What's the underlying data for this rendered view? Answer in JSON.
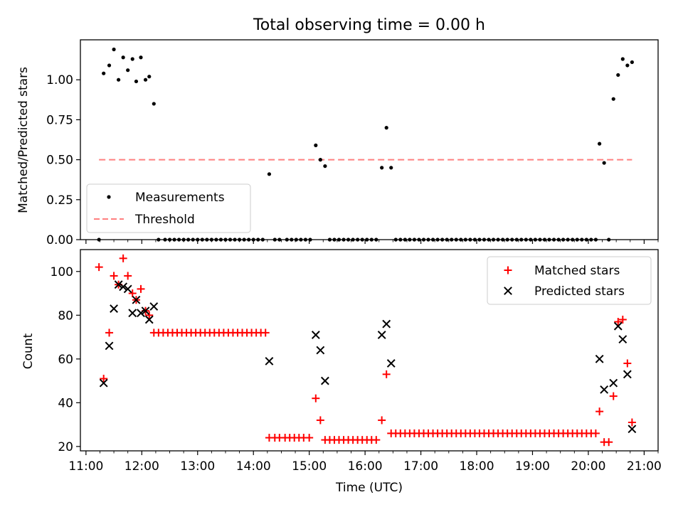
{
  "chart_data": [
    {
      "type": "scatter",
      "title": "Total observing time = 0.00 h",
      "xlabel": "",
      "ylabel": "Matched/Predicted stars",
      "xlim": [
        "10:54",
        "21:15"
      ],
      "ylim": [
        0.0,
        1.25
      ],
      "yticks": [
        0.0,
        0.25,
        0.5,
        0.75,
        1.0
      ],
      "ytick_labels": [
        "0.00",
        "0.25",
        "0.50",
        "0.75",
        "1.00"
      ],
      "grid": false,
      "legend_position": "lower-left",
      "series": [
        {
          "name": "Measurements",
          "marker": "dot",
          "color": "#000000",
          "points": [
            [
              "11:14",
              0.0
            ],
            [
              "11:19",
              1.04
            ],
            [
              "11:25",
              1.09
            ],
            [
              "11:30",
              1.19
            ],
            [
              "11:35",
              1.0
            ],
            [
              "11:40",
              1.14
            ],
            [
              "11:45",
              1.06
            ],
            [
              "11:50",
              1.13
            ],
            [
              "11:54",
              0.99
            ],
            [
              "11:59",
              1.14
            ],
            [
              "12:04",
              1.0
            ],
            [
              "12:08",
              1.02
            ],
            [
              "12:13",
              0.85
            ],
            [
              "12:18",
              0.0
            ],
            [
              "12:25",
              0.0
            ],
            [
              "12:30",
              0.0
            ],
            [
              "12:35",
              0.0
            ],
            [
              "12:40",
              0.0
            ],
            [
              "12:45",
              0.0
            ],
            [
              "12:50",
              0.0
            ],
            [
              "12:55",
              0.0
            ],
            [
              "13:00",
              0.0
            ],
            [
              "13:05",
              0.0
            ],
            [
              "13:10",
              0.0
            ],
            [
              "13:15",
              0.0
            ],
            [
              "13:20",
              0.0
            ],
            [
              "13:25",
              0.0
            ],
            [
              "13:30",
              0.0
            ],
            [
              "13:35",
              0.0
            ],
            [
              "13:40",
              0.0
            ],
            [
              "13:45",
              0.0
            ],
            [
              "13:50",
              0.0
            ],
            [
              "13:55",
              0.0
            ],
            [
              "14:00",
              0.0
            ],
            [
              "14:05",
              0.0
            ],
            [
              "14:10",
              0.0
            ],
            [
              "14:17",
              0.41
            ],
            [
              "14:23",
              0.0
            ],
            [
              "14:28",
              0.0
            ],
            [
              "14:36",
              0.0
            ],
            [
              "14:41",
              0.0
            ],
            [
              "14:46",
              0.0
            ],
            [
              "14:51",
              0.0
            ],
            [
              "14:56",
              0.0
            ],
            [
              "15:01",
              0.0
            ],
            [
              "15:07",
              0.59
            ],
            [
              "15:12",
              0.5
            ],
            [
              "15:17",
              0.46
            ],
            [
              "15:22",
              0.0
            ],
            [
              "15:27",
              0.0
            ],
            [
              "15:32",
              0.0
            ],
            [
              "15:37",
              0.0
            ],
            [
              "15:42",
              0.0
            ],
            [
              "15:47",
              0.0
            ],
            [
              "15:52",
              0.0
            ],
            [
              "15:57",
              0.0
            ],
            [
              "16:02",
              0.0
            ],
            [
              "16:07",
              0.0
            ],
            [
              "16:12",
              0.0
            ],
            [
              "16:18",
              0.45
            ],
            [
              "16:23",
              0.7
            ],
            [
              "16:28",
              0.45
            ],
            [
              "16:33",
              0.0
            ],
            [
              "16:38",
              0.0
            ],
            [
              "16:43",
              0.0
            ],
            [
              "16:48",
              0.0
            ],
            [
              "16:53",
              0.0
            ],
            [
              "16:58",
              0.0
            ],
            [
              "17:03",
              0.0
            ],
            [
              "17:08",
              0.0
            ],
            [
              "17:13",
              0.0
            ],
            [
              "17:18",
              0.0
            ],
            [
              "17:23",
              0.0
            ],
            [
              "17:28",
              0.0
            ],
            [
              "17:33",
              0.0
            ],
            [
              "17:38",
              0.0
            ],
            [
              "17:43",
              0.0
            ],
            [
              "17:48",
              0.0
            ],
            [
              "17:53",
              0.0
            ],
            [
              "17:58",
              0.0
            ],
            [
              "18:03",
              0.0
            ],
            [
              "18:08",
              0.0
            ],
            [
              "18:13",
              0.0
            ],
            [
              "18:18",
              0.0
            ],
            [
              "18:23",
              0.0
            ],
            [
              "18:28",
              0.0
            ],
            [
              "18:33",
              0.0
            ],
            [
              "18:38",
              0.0
            ],
            [
              "18:43",
              0.0
            ],
            [
              "18:48",
              0.0
            ],
            [
              "18:53",
              0.0
            ],
            [
              "18:58",
              0.0
            ],
            [
              "19:03",
              0.0
            ],
            [
              "19:08",
              0.0
            ],
            [
              "19:13",
              0.0
            ],
            [
              "19:18",
              0.0
            ],
            [
              "19:23",
              0.0
            ],
            [
              "19:28",
              0.0
            ],
            [
              "19:33",
              0.0
            ],
            [
              "19:38",
              0.0
            ],
            [
              "19:43",
              0.0
            ],
            [
              "19:48",
              0.0
            ],
            [
              "19:53",
              0.0
            ],
            [
              "19:58",
              0.0
            ],
            [
              "20:03",
              0.0
            ],
            [
              "20:08",
              0.0
            ],
            [
              "20:12",
              0.6
            ],
            [
              "20:17",
              0.48
            ],
            [
              "20:22",
              0.0
            ],
            [
              "20:27",
              0.88
            ],
            [
              "20:32",
              1.03
            ],
            [
              "20:37",
              1.13
            ],
            [
              "20:42",
              1.09
            ],
            [
              "20:47",
              1.11
            ]
          ]
        },
        {
          "name": "Threshold",
          "type": "line",
          "style": "dashed",
          "color": "#ff7f7f",
          "points": [
            [
              "11:14",
              0.5
            ],
            [
              "20:47",
              0.5
            ]
          ]
        }
      ]
    },
    {
      "type": "scatter",
      "title": "",
      "xlabel": "Time (UTC)",
      "ylabel": "Count",
      "xlim": [
        "10:54",
        "21:15"
      ],
      "ylim": [
        18,
        110
      ],
      "yticks": [
        20,
        40,
        60,
        80,
        100
      ],
      "xticks": [
        "11:00",
        "12:00",
        "13:00",
        "14:00",
        "15:00",
        "16:00",
        "17:00",
        "18:00",
        "19:00",
        "20:00",
        "21:00"
      ],
      "grid": false,
      "legend_position": "upper-right",
      "series": [
        {
          "name": "Matched stars",
          "marker": "plus",
          "color": "#ff0000",
          "points": [
            [
              "11:14",
              102
            ],
            [
              "11:19",
              51
            ],
            [
              "11:25",
              72
            ],
            [
              "11:30",
              98
            ],
            [
              "11:35",
              94
            ],
            [
              "11:40",
              106
            ],
            [
              "11:45",
              98
            ],
            [
              "11:50",
              90
            ],
            [
              "11:54",
              87
            ],
            [
              "11:59",
              92
            ],
            [
              "12:04",
              82
            ],
            [
              "12:08",
              80
            ],
            [
              "12:13",
              72
            ],
            [
              "12:18",
              72
            ],
            [
              "12:23",
              72
            ],
            [
              "12:28",
              72
            ],
            [
              "12:33",
              72
            ],
            [
              "12:38",
              72
            ],
            [
              "12:43",
              72
            ],
            [
              "12:48",
              72
            ],
            [
              "12:53",
              72
            ],
            [
              "12:58",
              72
            ],
            [
              "13:03",
              72
            ],
            [
              "13:08",
              72
            ],
            [
              "13:13",
              72
            ],
            [
              "13:18",
              72
            ],
            [
              "13:23",
              72
            ],
            [
              "13:28",
              72
            ],
            [
              "13:33",
              72
            ],
            [
              "13:38",
              72
            ],
            [
              "13:43",
              72
            ],
            [
              "13:48",
              72
            ],
            [
              "13:53",
              72
            ],
            [
              "13:58",
              72
            ],
            [
              "14:03",
              72
            ],
            [
              "14:08",
              72
            ],
            [
              "14:13",
              72
            ],
            [
              "14:17",
              24
            ],
            [
              "14:23",
              24
            ],
            [
              "14:28",
              24
            ],
            [
              "14:34",
              24
            ],
            [
              "14:39",
              24
            ],
            [
              "14:44",
              24
            ],
            [
              "14:49",
              24
            ],
            [
              "14:54",
              24
            ],
            [
              "15:00",
              24
            ],
            [
              "15:07",
              42
            ],
            [
              "15:12",
              32
            ],
            [
              "15:17",
              23
            ],
            [
              "15:22",
              23
            ],
            [
              "15:27",
              23
            ],
            [
              "15:32",
              23
            ],
            [
              "15:37",
              23
            ],
            [
              "15:42",
              23
            ],
            [
              "15:47",
              23
            ],
            [
              "15:52",
              23
            ],
            [
              "15:57",
              23
            ],
            [
              "16:02",
              23
            ],
            [
              "16:07",
              23
            ],
            [
              "16:12",
              23
            ],
            [
              "16:18",
              32
            ],
            [
              "16:23",
              53
            ],
            [
              "16:28",
              26
            ],
            [
              "16:33",
              26
            ],
            [
              "16:38",
              26
            ],
            [
              "16:43",
              26
            ],
            [
              "16:48",
              26
            ],
            [
              "16:53",
              26
            ],
            [
              "16:58",
              26
            ],
            [
              "17:03",
              26
            ],
            [
              "17:08",
              26
            ],
            [
              "17:13",
              26
            ],
            [
              "17:18",
              26
            ],
            [
              "17:23",
              26
            ],
            [
              "17:28",
              26
            ],
            [
              "17:33",
              26
            ],
            [
              "17:38",
              26
            ],
            [
              "17:43",
              26
            ],
            [
              "17:48",
              26
            ],
            [
              "17:53",
              26
            ],
            [
              "17:58",
              26
            ],
            [
              "18:03",
              26
            ],
            [
              "18:08",
              26
            ],
            [
              "18:13",
              26
            ],
            [
              "18:18",
              26
            ],
            [
              "18:23",
              26
            ],
            [
              "18:28",
              26
            ],
            [
              "18:33",
              26
            ],
            [
              "18:38",
              26
            ],
            [
              "18:43",
              26
            ],
            [
              "18:48",
              26
            ],
            [
              "18:53",
              26
            ],
            [
              "18:58",
              26
            ],
            [
              "19:03",
              26
            ],
            [
              "19:08",
              26
            ],
            [
              "19:13",
              26
            ],
            [
              "19:18",
              26
            ],
            [
              "19:23",
              26
            ],
            [
              "19:28",
              26
            ],
            [
              "19:33",
              26
            ],
            [
              "19:38",
              26
            ],
            [
              "19:43",
              26
            ],
            [
              "19:48",
              26
            ],
            [
              "19:53",
              26
            ],
            [
              "19:58",
              26
            ],
            [
              "20:03",
              26
            ],
            [
              "20:08",
              26
            ],
            [
              "20:12",
              36
            ],
            [
              "20:17",
              22
            ],
            [
              "20:22",
              22
            ],
            [
              "20:27",
              43
            ],
            [
              "20:32",
              77
            ],
            [
              "20:37",
              78
            ],
            [
              "20:42",
              58
            ],
            [
              "20:47",
              31
            ]
          ]
        },
        {
          "name": "Predicted stars",
          "marker": "x",
          "color": "#000000",
          "points": [
            [
              "11:19",
              49
            ],
            [
              "11:25",
              66
            ],
            [
              "11:30",
              83
            ],
            [
              "11:35",
              94
            ],
            [
              "11:40",
              93
            ],
            [
              "11:45",
              92
            ],
            [
              "11:50",
              81
            ],
            [
              "11:54",
              87
            ],
            [
              "11:59",
              81
            ],
            [
              "12:04",
              82
            ],
            [
              "12:08",
              78
            ],
            [
              "12:13",
              84
            ],
            [
              "14:17",
              59
            ],
            [
              "15:07",
              71
            ],
            [
              "15:12",
              64
            ],
            [
              "15:17",
              50
            ],
            [
              "16:18",
              71
            ],
            [
              "16:23",
              76
            ],
            [
              "16:28",
              58
            ],
            [
              "20:12",
              60
            ],
            [
              "20:17",
              46
            ],
            [
              "20:27",
              49
            ],
            [
              "20:32",
              75
            ],
            [
              "20:37",
              69
            ],
            [
              "20:42",
              53
            ],
            [
              "20:47",
              28
            ]
          ]
        }
      ]
    }
  ]
}
